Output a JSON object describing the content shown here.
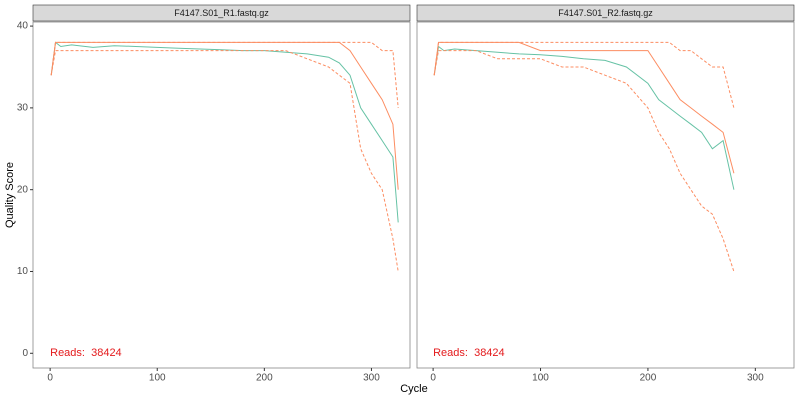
{
  "axis_labels": {
    "x": "Cycle",
    "y": "Quality Score"
  },
  "chart_data": [
    {
      "type": "line",
      "title": "F4147.S01_R1.fastq.gz",
      "annotation": "Reads:  38424",
      "xlim": [
        -16,
        336
      ],
      "ylim": [
        -1.8,
        40.5
      ],
      "xticks": [
        0,
        100,
        200,
        300
      ],
      "yticks": [
        0,
        10,
        20,
        30,
        40
      ],
      "x": [
        1,
        5,
        10,
        20,
        40,
        60,
        80,
        100,
        120,
        140,
        160,
        180,
        200,
        220,
        240,
        260,
        270,
        280,
        290,
        300,
        310,
        320,
        325
      ],
      "series": [
        {
          "color": "#66C2A5",
          "dash": false,
          "values": [
            34,
            38,
            37.5,
            37.7,
            37.4,
            37.6,
            37.5,
            37.4,
            37.3,
            37.2,
            37.1,
            37,
            37,
            36.8,
            36.6,
            36.2,
            35.5,
            34,
            30,
            28,
            26,
            24,
            16
          ]
        },
        {
          "color": "#FC8D62",
          "dash": false,
          "values": [
            34,
            38,
            38,
            38,
            38,
            38,
            38,
            38,
            38,
            38,
            38,
            38,
            38,
            38,
            38,
            38,
            38,
            37,
            35,
            33,
            31,
            28,
            20
          ]
        },
        {
          "color": "#FC8D62",
          "dash": true,
          "values": [
            34,
            38,
            38,
            38,
            38,
            38,
            38,
            38,
            38,
            38,
            38,
            38,
            38,
            38,
            38,
            38,
            38,
            38,
            38,
            38,
            37,
            37,
            30
          ]
        },
        {
          "color": "#FC8D62",
          "dash": true,
          "values": [
            34,
            37,
            37,
            37,
            37,
            37,
            37,
            37,
            37,
            37,
            37,
            37,
            37,
            37,
            36,
            35,
            34,
            33,
            25,
            22,
            20,
            14,
            10
          ]
        }
      ]
    },
    {
      "type": "line",
      "title": "F4147.S01_R2.fastq.gz",
      "annotation": "Reads:  38424",
      "xlim": [
        -15,
        336
      ],
      "ylim": [
        -1.8,
        40.5
      ],
      "xticks": [
        0,
        100,
        200,
        300
      ],
      "x": [
        1,
        5,
        10,
        20,
        40,
        60,
        80,
        100,
        120,
        140,
        160,
        180,
        200,
        210,
        220,
        230,
        240,
        250,
        260,
        270,
        280
      ],
      "series": [
        {
          "color": "#66C2A5",
          "dash": false,
          "values": [
            34,
            37.5,
            37,
            37.2,
            37,
            36.8,
            36.6,
            36.5,
            36.3,
            36,
            35.8,
            35,
            33,
            31,
            30,
            29,
            28,
            27,
            25,
            26,
            20
          ]
        },
        {
          "color": "#FC8D62",
          "dash": false,
          "values": [
            34,
            38,
            38,
            38,
            38,
            38,
            38,
            37,
            37,
            37,
            37,
            37,
            37,
            35,
            33,
            31,
            30,
            29,
            28,
            27,
            22
          ]
        },
        {
          "color": "#FC8D62",
          "dash": true,
          "values": [
            34,
            38,
            38,
            38,
            38,
            38,
            38,
            38,
            38,
            38,
            38,
            38,
            38,
            38,
            38,
            37,
            37,
            36,
            35,
            35,
            30
          ]
        },
        {
          "color": "#FC8D62",
          "dash": true,
          "values": [
            34,
            37,
            37,
            37,
            37,
            36,
            36,
            36,
            35,
            35,
            34,
            33,
            30,
            27,
            25,
            22,
            20,
            18,
            17,
            14,
            10
          ]
        }
      ]
    }
  ]
}
